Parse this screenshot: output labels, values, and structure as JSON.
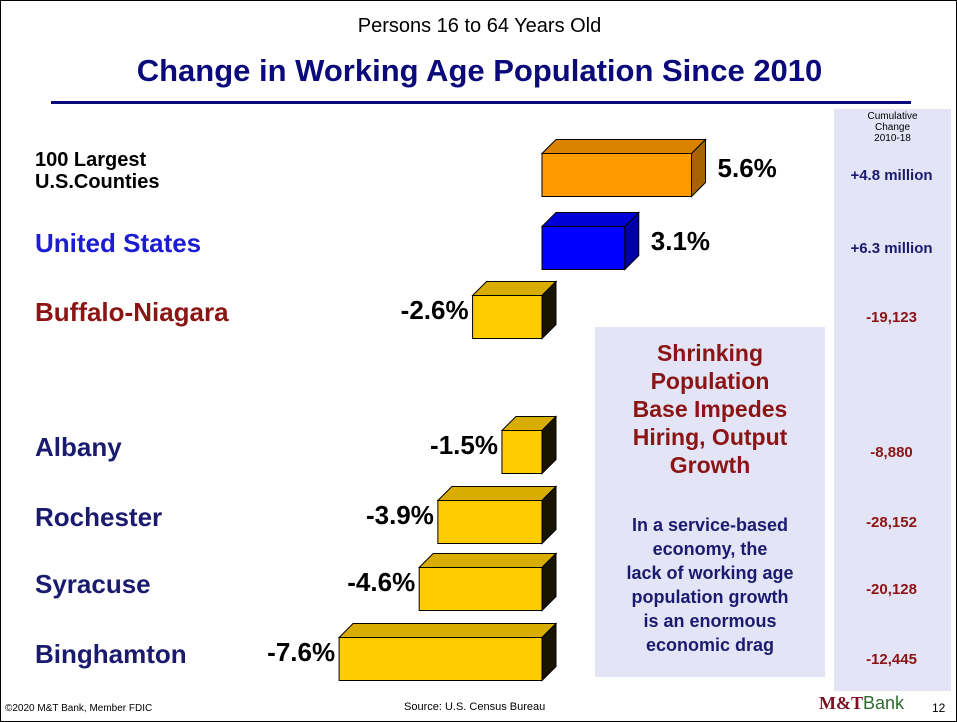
{
  "chart_data": {
    "type": "bar3d",
    "subtitle": "Persons 16 to 64 Years Old",
    "title": "Change in Working Age Population Since 2010",
    "categories": [
      "100 Largest\nU.S.Counties",
      "United States",
      "Buffalo-Niagara",
      "Albany",
      "Rochester",
      "Syracuse",
      "Binghamton"
    ],
    "category_colors": [
      "#000000",
      "#1c1cd4",
      "#8b1414",
      "#1a1a6e",
      "#1a1a6e",
      "#1a1a6e",
      "#1a1a6e"
    ],
    "values": [
      5.6,
      3.1,
      -2.6,
      -1.5,
      -3.9,
      -4.6,
      -7.6
    ],
    "value_labels": [
      "5.6%",
      "3.1%",
      "-2.6%",
      "-1.5%",
      "-3.9%",
      "-4.6%",
      "-7.6%"
    ],
    "colors": [
      "#ff9a00",
      "#0000ff",
      "#ffcc00",
      "#ffcc00",
      "#ffcc00",
      "#ffcc00",
      "#ffcc00"
    ],
    "cumulative_header": "Cumulative\nChange\n2010-18",
    "cumulative": [
      "+4.8 million",
      "+6.3 million",
      "-19,123",
      "-8,880",
      "-28,152",
      "-20,128",
      "-12,445"
    ],
    "cumulative_colors": [
      "#1a1a6e",
      "#1a1a6e",
      "#8b1414",
      "#8b1414",
      "#8b1414",
      "#8b1414",
      "#8b1414"
    ],
    "callout_heading": "Shrinking\nPopulation\nBase Impedes\nHiring, Output\nGrowth",
    "callout_text": "In a service-based\neconomy, the\nlack of working age\npopulation growth\nis an enormous\neconomic drag",
    "footer_left": "©2020 M&T Bank, Member FDIC",
    "source": "Source:  U.S. Census Bureau",
    "logo_mark": "M&T",
    "logo_word": "Bank",
    "page_number": "12"
  }
}
